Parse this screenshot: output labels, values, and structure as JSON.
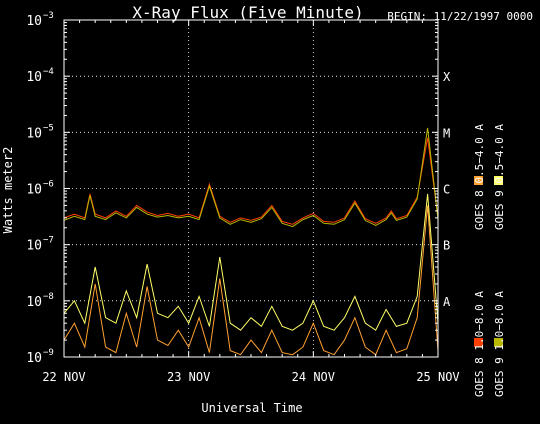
{
  "chart_data": {
    "type": "line",
    "title": "X-Ray Flux (Five Minute)",
    "begin_label": "BEGIN: 11/22/1997 0000",
    "xlabel": "Universal Time",
    "ylabel": "Watts meter2",
    "y_scale": "log",
    "ylim": [
      1e-09,
      0.001
    ],
    "xlim": [
      "1997-11-22",
      "1997-11-25"
    ],
    "x_ticks": [
      "22 NOV",
      "23 NOV",
      "24 NOV",
      "25 NOV"
    ],
    "y_ticks": [
      {
        "base": "10",
        "exp": "−3"
      },
      {
        "base": "10",
        "exp": "−4"
      },
      {
        "base": "10",
        "exp": "−5"
      },
      {
        "base": "10",
        "exp": "−6"
      },
      {
        "base": "10",
        "exp": "−7"
      },
      {
        "base": "10",
        "exp": "−8"
      },
      {
        "base": "10",
        "exp": "−9"
      }
    ],
    "flare_classes": [
      "X",
      "M",
      "C",
      "B",
      "A"
    ],
    "grid": "dotted",
    "legend_position": "right",
    "series": [
      {
        "name": "GOES 8 1.0−8.0 A",
        "color": "#ff4000",
        "x_hours": [
          0,
          2,
          4,
          5,
          6,
          8,
          10,
          12,
          14,
          16,
          18,
          20,
          22,
          24,
          26,
          28,
          30,
          32,
          34,
          36,
          38,
          40,
          42,
          44,
          46,
          48,
          50,
          52,
          54,
          56,
          58,
          60,
          62,
          63,
          64,
          66,
          68,
          70,
          72
        ],
        "y": [
          3e-07,
          3.5e-07,
          3e-07,
          8e-07,
          3.5e-07,
          3e-07,
          4e-07,
          3.2e-07,
          5e-07,
          3.8e-07,
          3.3e-07,
          3.6e-07,
          3.2e-07,
          3.5e-07,
          3e-07,
          1.2e-06,
          3.2e-07,
          2.5e-07,
          3e-07,
          2.7e-07,
          3.1e-07,
          5e-07,
          2.6e-07,
          2.3e-07,
          3e-07,
          3.6e-07,
          2.6e-07,
          2.5e-07,
          3e-07,
          6e-07,
          2.9e-07,
          2.4e-07,
          3e-07,
          4e-07,
          2.9e-07,
          3.3e-07,
          7e-07,
          8e-06,
          3e-07
        ]
      },
      {
        "name": "GOES 8 0.5−4.0 A",
        "color": "#ffa030",
        "x_hours": [
          0,
          2,
          4,
          6,
          8,
          10,
          12,
          14,
          16,
          18,
          20,
          22,
          24,
          26,
          28,
          30,
          32,
          34,
          36,
          38,
          40,
          42,
          44,
          46,
          48,
          50,
          52,
          54,
          56,
          58,
          60,
          62,
          64,
          66,
          68,
          70,
          72
        ],
        "y": [
          2e-09,
          4e-09,
          1.5e-09,
          2e-08,
          1.5e-09,
          1.2e-09,
          6e-09,
          1.5e-09,
          1.8e-08,
          2e-09,
          1.6e-09,
          3e-09,
          1.5e-09,
          5e-09,
          1.2e-09,
          2.5e-08,
          1.3e-09,
          1.1e-09,
          2e-09,
          1.2e-09,
          3e-09,
          1.2e-09,
          1.1e-09,
          1.5e-09,
          4e-09,
          1.3e-09,
          1.1e-09,
          2e-09,
          5e-09,
          1.5e-09,
          1.1e-09,
          3e-09,
          1.2e-09,
          1.4e-09,
          5e-09,
          5e-07,
          1.3e-09
        ]
      },
      {
        "name": "GOES 9 1.0−8.0 A",
        "color": "#b8b800",
        "x_hours": [
          0,
          2,
          4,
          5,
          6,
          8,
          10,
          12,
          14,
          16,
          18,
          20,
          22,
          24,
          26,
          28,
          30,
          32,
          34,
          36,
          38,
          40,
          42,
          44,
          46,
          48,
          50,
          52,
          54,
          56,
          58,
          60,
          62,
          63,
          64,
          66,
          68,
          70,
          72
        ],
        "y": [
          2.7e-07,
          3.2e-07,
          2.8e-07,
          7.5e-07,
          3.2e-07,
          2.8e-07,
          3.7e-07,
          3e-07,
          4.6e-07,
          3.5e-07,
          3.1e-07,
          3.3e-07,
          3e-07,
          3.2e-07,
          2.8e-07,
          1.1e-06,
          3e-07,
          2.3e-07,
          2.8e-07,
          2.5e-07,
          2.9e-07,
          4.6e-07,
          2.4e-07,
          2.1e-07,
          2.8e-07,
          3.3e-07,
          2.4e-07,
          2.3e-07,
          2.8e-07,
          5.5e-07,
          2.7e-07,
          2.2e-07,
          2.8e-07,
          3.7e-07,
          2.7e-07,
          3.1e-07,
          6.5e-07,
          1.2e-05,
          2.8e-07
        ]
      },
      {
        "name": "GOES 9 0.5−4.0 A",
        "color": "#ffff66",
        "x_hours": [
          0,
          2,
          4,
          6,
          8,
          10,
          12,
          14,
          16,
          18,
          20,
          22,
          24,
          26,
          28,
          30,
          32,
          34,
          36,
          38,
          40,
          42,
          44,
          46,
          48,
          50,
          52,
          54,
          56,
          58,
          60,
          62,
          64,
          66,
          68,
          70,
          72
        ],
        "y": [
          6e-09,
          1e-08,
          4e-09,
          4e-08,
          5e-09,
          4e-09,
          1.5e-08,
          5e-09,
          4.5e-08,
          6e-09,
          5e-09,
          8e-09,
          4e-09,
          1.2e-08,
          3.5e-09,
          6e-08,
          4e-09,
          3e-09,
          5e-09,
          3.5e-09,
          8e-09,
          3.5e-09,
          3e-09,
          4e-09,
          1e-08,
          3.5e-09,
          3e-09,
          5e-09,
          1.2e-08,
          4e-09,
          3e-09,
          7e-09,
          3.5e-09,
          4e-09,
          1.2e-08,
          8e-07,
          4e-09
        ]
      }
    ]
  }
}
